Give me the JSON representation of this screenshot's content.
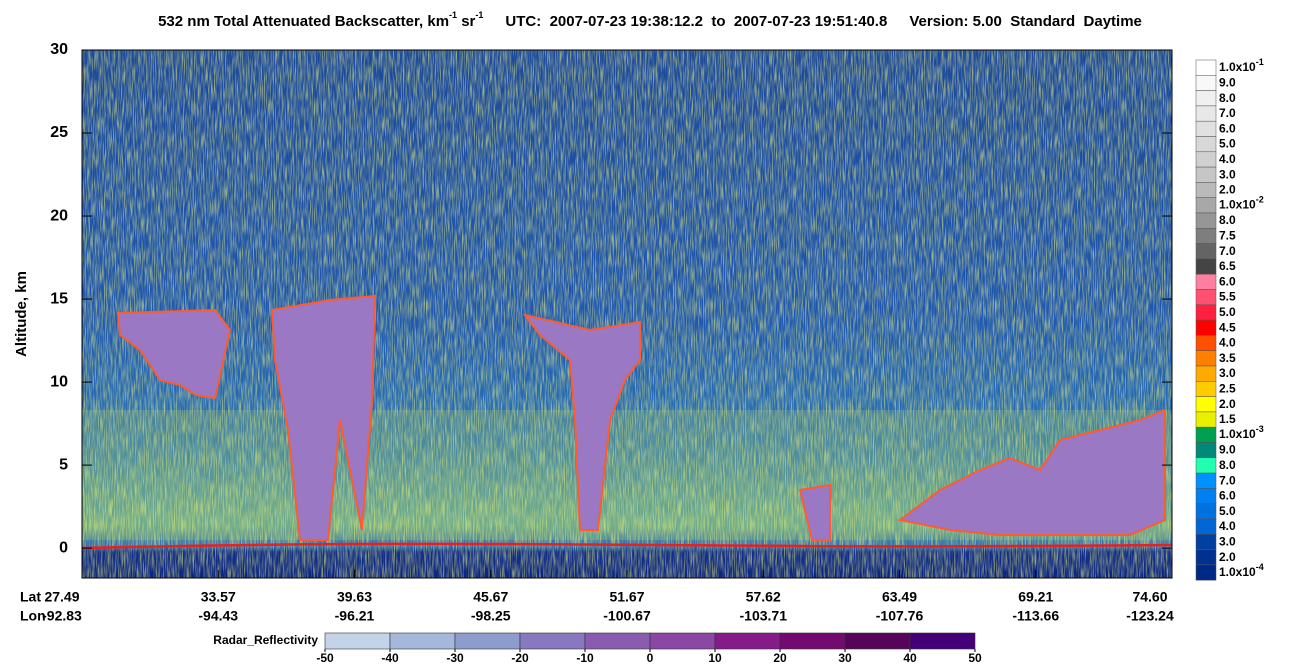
{
  "chart_data": {
    "type": "curtain",
    "title": {
      "main": "532 nm Total Attenuated Backscatter, km",
      "sup1": "-1",
      "unit": " sr",
      "sup2": "-1",
      "utc": "UTC:  2007-07-23 19:38:12.2  to  2007-07-23 19:51:40.8",
      "version": "Version: 5.00  Standard  Daytime"
    },
    "y_label": "Altitude, km",
    "ylim": [
      -1.8,
      30
    ],
    "yticks": [
      0,
      5,
      10,
      15,
      20,
      25,
      30
    ],
    "x_row_labels": [
      "Lat",
      "Lon"
    ],
    "lat": [
      27.49,
      33.57,
      39.63,
      45.67,
      51.67,
      57.62,
      63.49,
      69.21,
      {
        "value": 74.6,
        "label": "74.60"
      }
    ],
    "lon": [
      -92.83,
      -94.43,
      -96.21,
      -98.25,
      -100.67,
      -103.71,
      -107.76,
      -113.66,
      -123.24
    ],
    "backscatter_scale": {
      "labels": [
        {
          "text": "1.0x10",
          "sup": "-1"
        },
        "9.0",
        "8.0",
        "7.0",
        "6.0",
        "5.0",
        "4.0",
        "3.0",
        "2.0",
        {
          "text": "1.0x10",
          "sup": "-2"
        },
        "8.0",
        "7.5",
        "7.0",
        "6.5",
        "6.0",
        "5.5",
        "5.0",
        "4.5",
        "4.0",
        "3.5",
        "3.0",
        "2.5",
        "2.0",
        "1.5",
        {
          "text": "1.0x10",
          "sup": "-3"
        },
        "9.0",
        "8.0",
        "7.0",
        "6.0",
        "5.0",
        "4.0",
        "3.0",
        "2.0",
        {
          "text": "1.0x10",
          "sup": "-4"
        }
      ],
      "colors": [
        "#ffffff",
        "#f8f8f8",
        "#f0f0f0",
        "#e8e8e8",
        "#e0e0e0",
        "#d8d8d8",
        "#d0d0d0",
        "#c6c6c6",
        "#bababa",
        "#a8a8a8",
        "#969696",
        "#7e7e7e",
        "#646464",
        "#444444",
        "#ff7fa0",
        "#ff5070",
        "#ff2040",
        "#ff0000",
        "#ff5000",
        "#ff8000",
        "#ffaa00",
        "#ffcc00",
        "#ffff00",
        "#e8f000",
        "#00a050",
        "#008878",
        "#20ffb0",
        "#0090ff",
        "#0080f0",
        "#0072e0",
        "#0066d4",
        "#0040a0",
        "#003090",
        "#002888"
      ]
    },
    "radar_scale": {
      "label": "Radar_Reflectivity",
      "ticks": [
        -50,
        -40,
        -30,
        -20,
        -10,
        0,
        10,
        20,
        30,
        40,
        50
      ],
      "colors": [
        "#c4d4e8",
        "#a4b8dc",
        "#8c9ccc",
        "#8878c0",
        "#8a5cb0",
        "#8a48a4",
        "#861a88",
        "#740a70",
        "#56045a",
        "#440078"
      ]
    }
  }
}
